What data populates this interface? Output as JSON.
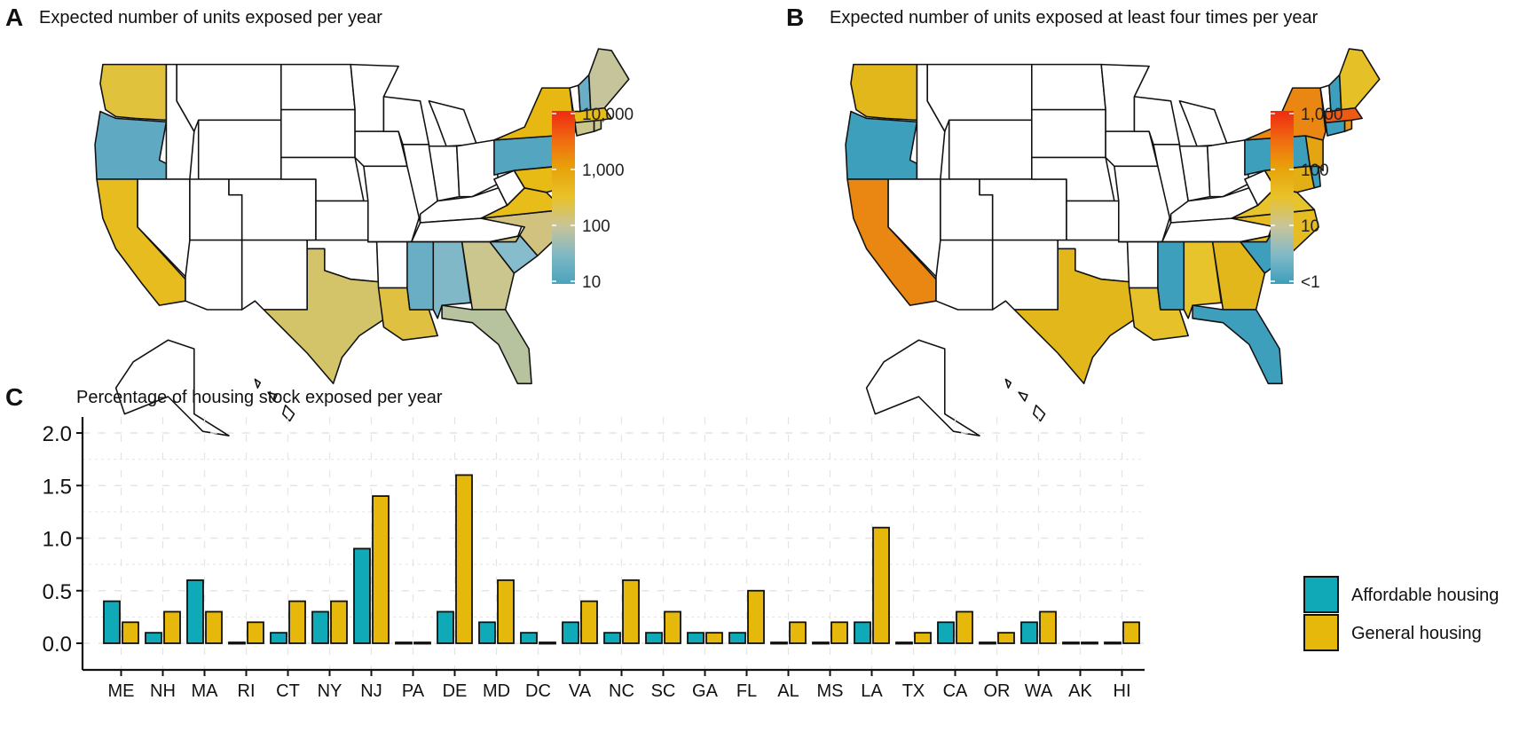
{
  "panels": {
    "A": {
      "letter": "A",
      "title": "Expected number of units exposed per year"
    },
    "B": {
      "letter": "B",
      "title": "Expected number of units exposed at least four times per year"
    },
    "C": {
      "letter": "C",
      "title": "Percentage of housing stock exposed per year"
    }
  },
  "colors": {
    "affordable": "#0fa9b7",
    "general": "#e5b80b",
    "no_data": "#ffffff",
    "outline": "#111111"
  },
  "chart_data": [
    {
      "id": "A",
      "type": "heatmap",
      "subtype": "choropleth",
      "title": "Expected number of units exposed per year",
      "scale": "log10",
      "legend": {
        "ticks": [
          "10,000",
          "1,000",
          "100",
          "10"
        ],
        "tick_values": [
          10000,
          1000,
          100,
          10
        ],
        "range": [
          10,
          10000
        ],
        "placement": "right",
        "gradient": [
          "#4aa3bd",
          "#7fb8c4",
          "#c8c49a",
          "#e8c22a",
          "#e8a30a",
          "#ef6a10",
          "#ef2a12"
        ]
      },
      "states": {
        "WA": {
          "level": "~500",
          "color": "#e0c23c"
        },
        "OR": {
          "level": "~30",
          "color": "#5fa9c2"
        },
        "CA": {
          "level": "~700",
          "color": "#e6bc1f"
        },
        "TX": {
          "level": "~200",
          "color": "#d3c46a"
        },
        "LA": {
          "level": "~400",
          "color": "#e0c040"
        },
        "MS": {
          "level": "~40",
          "color": "#6aaec6"
        },
        "AL": {
          "level": "~50",
          "color": "#80b8c8"
        },
        "GA": {
          "level": "~150",
          "color": "#cbc58e"
        },
        "FL": {
          "level": "~120",
          "color": "#b6c39e"
        },
        "SC": {
          "level": "~60",
          "color": "#86bccb"
        },
        "NC": {
          "level": "~200",
          "color": "#d1c37f"
        },
        "VA": {
          "level": "~800",
          "color": "#e8bd19"
        },
        "MD": {
          "level": "~900",
          "color": "#e8bb14"
        },
        "DE": {
          "level": "~30",
          "color": "#6aaec6"
        },
        "NJ": {
          "level": "~1000",
          "color": "#e8b812"
        },
        "PA": {
          "level": "~20",
          "color": "#53a5c0"
        },
        "NY": {
          "level": "~1000",
          "color": "#e8b812"
        },
        "CT": {
          "level": "~150",
          "color": "#cbc58e"
        },
        "RI": {
          "level": "~150",
          "color": "#cbc58e"
        },
        "MA": {
          "level": "~800",
          "color": "#e8bd19"
        },
        "NH": {
          "level": "~30",
          "color": "#6aaec6"
        },
        "ME": {
          "level": "~150",
          "color": "#c6c49b"
        }
      }
    },
    {
      "id": "B",
      "type": "heatmap",
      "subtype": "choropleth",
      "title": "Expected number of units exposed at least four times per year",
      "scale": "log10",
      "legend": {
        "ticks": [
          "1,000",
          "100",
          "10",
          "<1"
        ],
        "tick_values": [
          1000,
          100,
          10,
          1
        ],
        "range": [
          1,
          1000
        ],
        "placement": "right",
        "gradient": [
          "#3c9fbb",
          "#80b9c8",
          "#c8c49a",
          "#e8c22a",
          "#e8a30a",
          "#ef6a10",
          "#ef2a12"
        ]
      },
      "states": {
        "WA": {
          "level": "~100",
          "color": "#e2b71b"
        },
        "OR": {
          "level": "<1",
          "color": "#3e9fbd"
        },
        "CA": {
          "level": "~400",
          "color": "#ea8712"
        },
        "TX": {
          "level": "~100",
          "color": "#e2b71b"
        },
        "LA": {
          "level": "~60",
          "color": "#e7c12a"
        },
        "MS": {
          "level": "<1",
          "color": "#3e9fbd"
        },
        "AL": {
          "level": "~50",
          "color": "#e7c32c"
        },
        "GA": {
          "level": "~100",
          "color": "#e2b71b"
        },
        "FL": {
          "level": "<1",
          "color": "#3e9fbd"
        },
        "SC": {
          "level": "<1",
          "color": "#3e9fbd"
        },
        "NC": {
          "level": "~80",
          "color": "#e5bd22"
        },
        "VA": {
          "level": "~50",
          "color": "#e7c32c"
        },
        "MD": {
          "level": "~150",
          "color": "#e2b014"
        },
        "DE": {
          "level": "<1",
          "color": "#3e9fbd"
        },
        "NJ": {
          "level": "~200",
          "color": "#e5a412"
        },
        "PA": {
          "level": "<1",
          "color": "#3e9fbd"
        },
        "NY": {
          "level": "~400",
          "color": "#ea8712"
        },
        "CT": {
          "level": "<1",
          "color": "#3e9fbd"
        },
        "RI": {
          "level": "~300",
          "color": "#e89613"
        },
        "MA": {
          "level": "~700",
          "color": "#ec5a14"
        },
        "NH": {
          "level": "<1",
          "color": "#3e9fbd"
        },
        "ME": {
          "level": "~60",
          "color": "#e5c027"
        }
      }
    },
    {
      "id": "C",
      "type": "bar",
      "title": "Percentage of housing stock exposed per year",
      "xlabel": "",
      "ylabel": "",
      "ylim": [
        0,
        2.0
      ],
      "yticks": [
        0.0,
        0.5,
        1.0,
        1.5,
        2.0
      ],
      "ytick_labels": [
        "0.0",
        "0.5",
        "1.0",
        "1.5",
        "2.0"
      ],
      "grid": "dashed major and minor, both axes",
      "legend_placement": "right",
      "categories": [
        "ME",
        "NH",
        "MA",
        "RI",
        "CT",
        "NY",
        "NJ",
        "PA",
        "DE",
        "MD",
        "DC",
        "VA",
        "NC",
        "SC",
        "GA",
        "FL",
        "AL",
        "MS",
        "LA",
        "TX",
        "CA",
        "OR",
        "WA",
        "AK",
        "HI"
      ],
      "series": [
        {
          "name": "Affordable housing",
          "color": "#0fa9b7",
          "values": [
            0.4,
            0.1,
            0.6,
            0.0,
            0.1,
            0.3,
            0.9,
            0.0,
            0.3,
            0.2,
            0.1,
            0.2,
            0.1,
            0.1,
            0.1,
            0.1,
            0.0,
            0.0,
            0.2,
            0.0,
            0.2,
            0.0,
            0.2,
            0.0,
            0.0
          ]
        },
        {
          "name": "General housing",
          "color": "#e5b80b",
          "values": [
            0.2,
            0.3,
            0.3,
            0.2,
            0.4,
            0.4,
            1.4,
            0.0,
            1.6,
            0.6,
            0.0,
            0.4,
            0.6,
            0.3,
            0.1,
            0.5,
            0.2,
            0.2,
            1.1,
            0.1,
            0.3,
            0.1,
            0.3,
            0.0,
            0.2
          ]
        }
      ]
    }
  ]
}
